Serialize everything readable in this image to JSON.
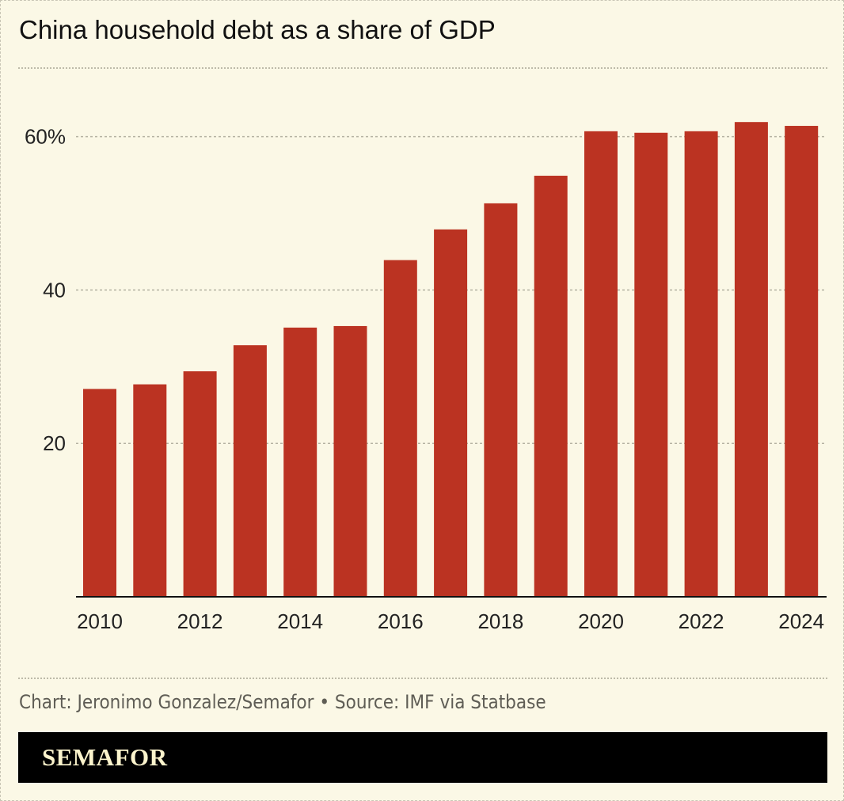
{
  "title": "China household debt as a share of GDP",
  "credit": "Chart: Jeronimo Gonzalez/Semafor • Source: IMF via Statbase",
  "brand": "SEMAFOR",
  "colors": {
    "bar": "#bb3322",
    "background": "#fbf8e6",
    "grid": "#b5b2a2",
    "axis": "#111111"
  },
  "chart_data": {
    "type": "bar",
    "title": "China household debt as a share of GDP",
    "categories": [
      "2010",
      "2011",
      "2012",
      "2013",
      "2014",
      "2015",
      "2016",
      "2017",
      "2018",
      "2019",
      "2020",
      "2021",
      "2022",
      "2023",
      "2024"
    ],
    "values": [
      27.1,
      27.7,
      29.4,
      32.8,
      35.1,
      35.3,
      43.9,
      47.9,
      51.3,
      54.9,
      60.7,
      60.5,
      60.7,
      61.9,
      61.4
    ],
    "ylim": [
      0,
      62
    ],
    "yticks": [
      {
        "value": 20,
        "label": "20"
      },
      {
        "value": 40,
        "label": "40"
      },
      {
        "value": 60,
        "label": "60%"
      }
    ],
    "xtick_labels": [
      "2010",
      "2012",
      "2014",
      "2016",
      "2018",
      "2020",
      "2022",
      "2024"
    ],
    "xlabel": "",
    "ylabel": "",
    "grid": true,
    "legend": "none"
  }
}
